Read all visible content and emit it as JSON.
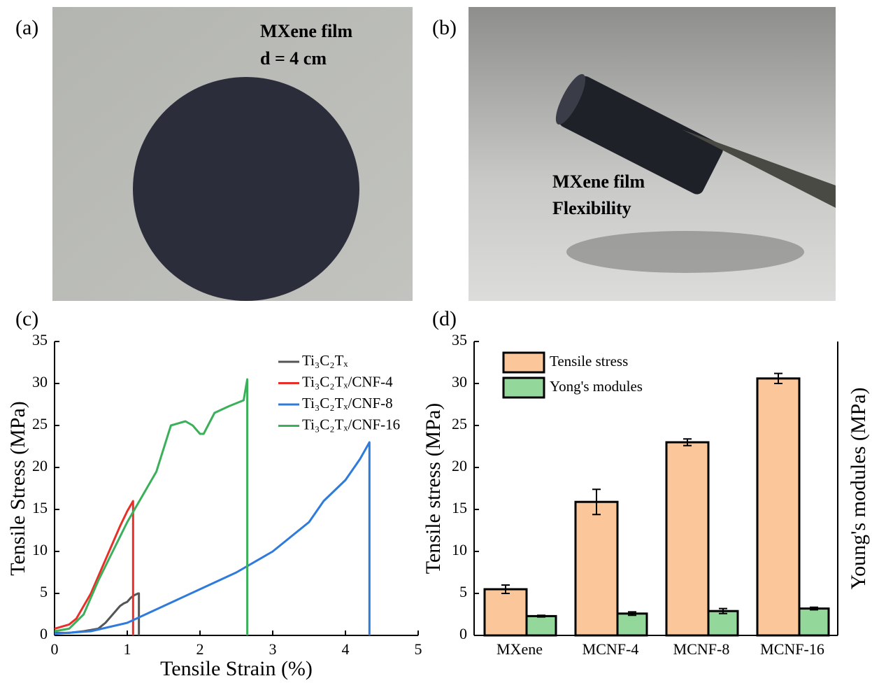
{
  "photos": [
    {
      "label": "(a)",
      "texts": [
        "MXene film",
        "d = 4 cm"
      ]
    },
    {
      "label": "(b)",
      "texts": [
        "MXene film",
        "Flexibility"
      ]
    }
  ],
  "chart_data": [
    {
      "type": "line",
      "panel_label": "(c)",
      "xlabel": "Tensile Strain (%)",
      "ylabel": "Tensile Stress (MPa)",
      "xlim": [
        0,
        5
      ],
      "xticks": [
        0,
        1,
        2,
        3,
        4,
        5
      ],
      "ylim": [
        0,
        35
      ],
      "yticks": [
        0,
        5,
        10,
        15,
        20,
        25,
        30,
        35
      ],
      "series": [
        {
          "name": "Ti₃C₂Tₓ",
          "color": "#555555",
          "x": [
            0,
            0.2,
            0.4,
            0.6,
            0.7,
            0.8,
            0.9,
            0.95,
            1.0,
            1.05,
            1.1,
            1.15,
            1.16,
            1.16
          ],
          "values": [
            0.3,
            0.3,
            0.5,
            0.8,
            1.5,
            2.5,
            3.5,
            3.8,
            4.0,
            4.5,
            4.8,
            5.0,
            5.0,
            0
          ]
        },
        {
          "name": "Ti₃C₂Tₓ/CNF-4",
          "color": "#e8302a",
          "x": [
            0,
            0.2,
            0.3,
            0.4,
            0.5,
            0.6,
            0.7,
            0.8,
            0.9,
            1.0,
            1.08,
            1.08
          ],
          "values": [
            0.8,
            1.3,
            2,
            3.5,
            5,
            7,
            9,
            11,
            13,
            14.8,
            16,
            0
          ]
        },
        {
          "name": "Ti₃C₂Tₓ/CNF-8",
          "color": "#2e7bdc",
          "x": [
            0,
            0.5,
            1.0,
            1.5,
            2.0,
            2.5,
            3.0,
            3.5,
            3.7,
            4.0,
            4.2,
            4.33,
            4.33
          ],
          "values": [
            0.2,
            0.5,
            1.5,
            3.5,
            5.5,
            7.5,
            10,
            13.5,
            16,
            18.5,
            21,
            23,
            0
          ]
        },
        {
          "name": "Ti₃C₂Tₓ/CNF-16",
          "color": "#3bb05a",
          "x": [
            0,
            0.2,
            0.4,
            0.6,
            0.8,
            1.0,
            1.2,
            1.4,
            1.6,
            1.8,
            1.9,
            2.0,
            2.05,
            2.2,
            2.4,
            2.6,
            2.65,
            2.65
          ],
          "values": [
            0.5,
            0.8,
            2.5,
            6.5,
            10,
            13.5,
            16.5,
            19.5,
            25,
            25.5,
            25,
            24,
            24,
            26.5,
            27.3,
            28,
            30.5,
            0
          ]
        }
      ]
    },
    {
      "type": "bar",
      "panel_label": "(d)",
      "ylabel": "Tensile stress (MPa)",
      "y2label": "Young's modules (MPa)",
      "categories": [
        "MXene",
        "MCNF-4",
        "MCNF-8",
        "MCNF-16"
      ],
      "ylim": [
        0,
        35
      ],
      "yticks": [
        0,
        5,
        10,
        15,
        20,
        25,
        30,
        35
      ],
      "series": [
        {
          "name": "Tensile stress",
          "color": "#fbc79a",
          "values": [
            5.5,
            15.9,
            23.0,
            30.6
          ],
          "errors": [
            0.5,
            1.5,
            0.4,
            0.6
          ]
        },
        {
          "name": "Yong's modules",
          "color": "#94d79b",
          "values": [
            2.3,
            2.6,
            2.9,
            3.2
          ],
          "errors": [
            0.1,
            0.2,
            0.3,
            0.15
          ]
        }
      ]
    }
  ]
}
